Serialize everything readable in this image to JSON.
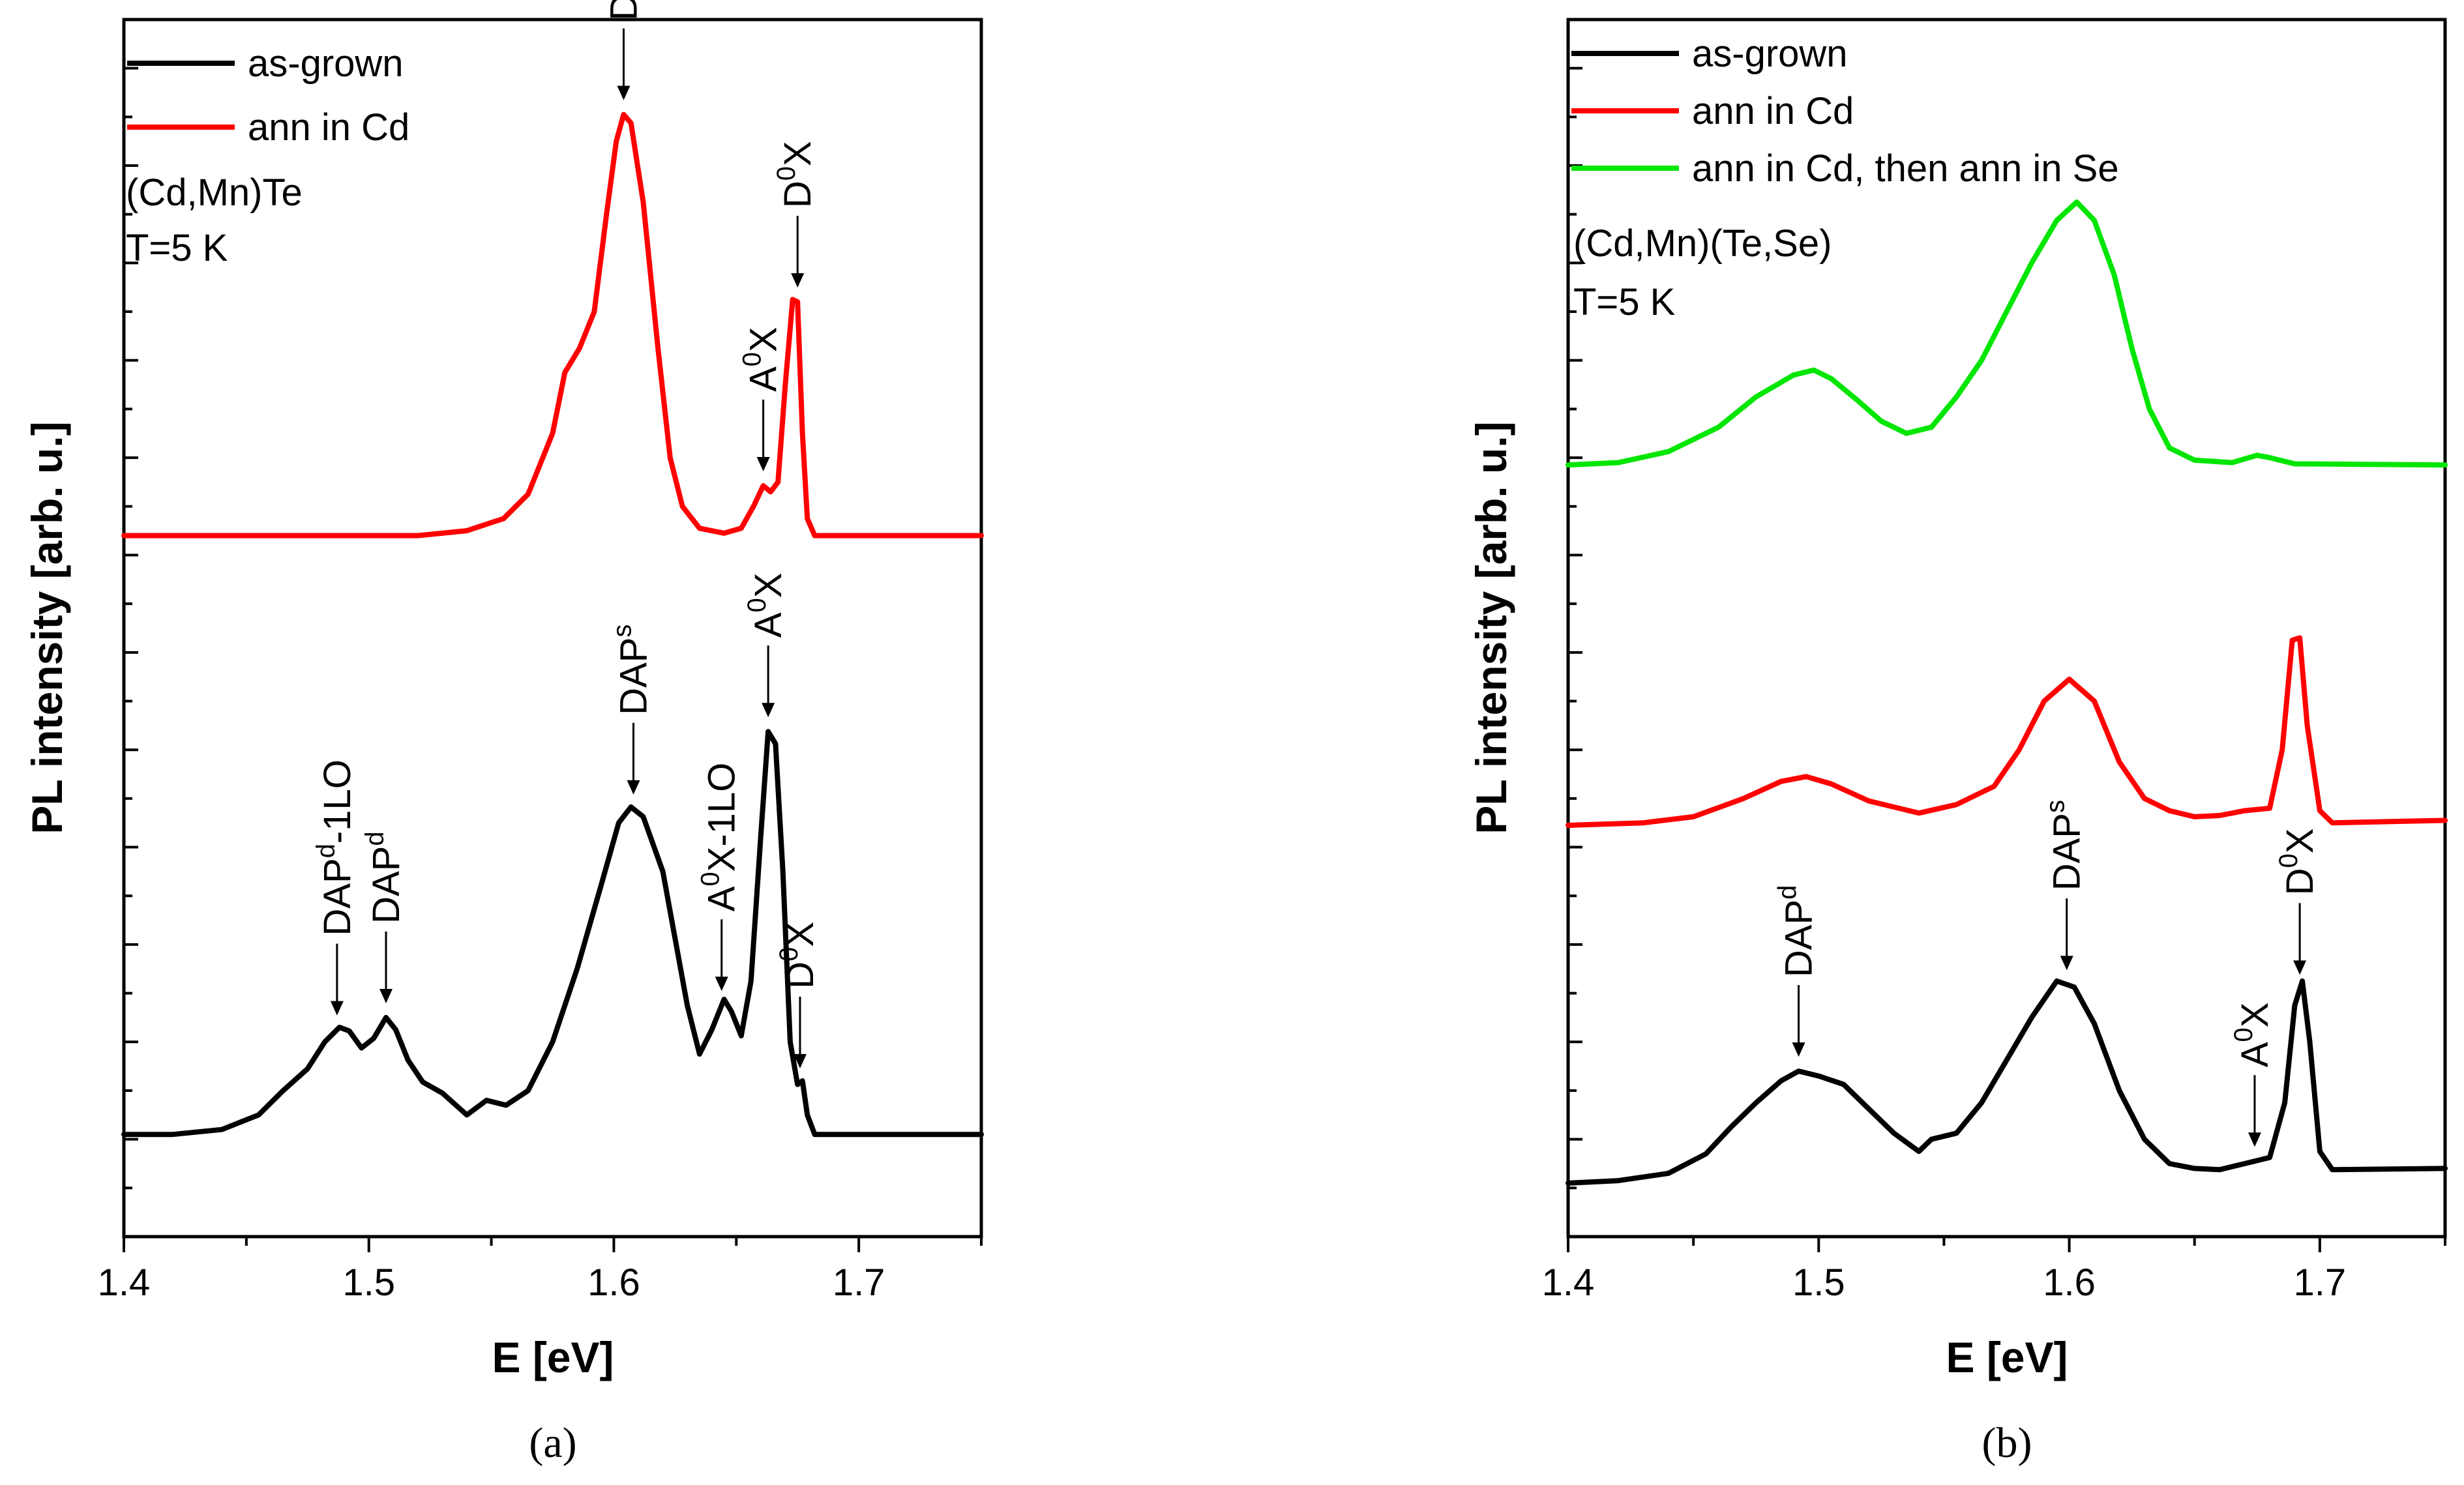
{
  "chart_data": [
    {
      "type": "line",
      "panel_label": "(a)",
      "xlabel": "E [eV]",
      "ylabel": "PL intensity [arb. u.]",
      "xlim": [
        1.4,
        1.75
      ],
      "ylim": [
        0,
        1
      ],
      "x_ticks": [
        "1.4",
        "1.5",
        "1.6",
        "1.7"
      ],
      "y_tick_labels": "none",
      "legend_position": "top-left",
      "annotations": [
        "(Cd,Mn)Te",
        "T=5 K"
      ],
      "series": [
        {
          "name": "as-grown",
          "color": "#000000",
          "points": [
            [
              1.4,
              0.084
            ],
            [
              1.42,
              0.084
            ],
            [
              1.44,
              0.088
            ],
            [
              1.455,
              0.1
            ],
            [
              1.465,
              0.12
            ],
            [
              1.475,
              0.138
            ],
            [
              1.482,
              0.16
            ],
            [
              1.488,
              0.172
            ],
            [
              1.492,
              0.169
            ],
            [
              1.497,
              0.155
            ],
            [
              1.502,
              0.163
            ],
            [
              1.507,
              0.18
            ],
            [
              1.511,
              0.17
            ],
            [
              1.516,
              0.145
            ],
            [
              1.522,
              0.127
            ],
            [
              1.53,
              0.118
            ],
            [
              1.54,
              0.1
            ],
            [
              1.548,
              0.112
            ],
            [
              1.556,
              0.108
            ],
            [
              1.565,
              0.12
            ],
            [
              1.575,
              0.16
            ],
            [
              1.585,
              0.22
            ],
            [
              1.595,
              0.29
            ],
            [
              1.602,
              0.34
            ],
            [
              1.607,
              0.353
            ],
            [
              1.612,
              0.345
            ],
            [
              1.62,
              0.3
            ],
            [
              1.63,
              0.19
            ],
            [
              1.635,
              0.15
            ],
            [
              1.64,
              0.17
            ],
            [
              1.645,
              0.195
            ],
            [
              1.648,
              0.185
            ],
            [
              1.652,
              0.165
            ],
            [
              1.656,
              0.21
            ],
            [
              1.66,
              0.33
            ],
            [
              1.663,
              0.415
            ],
            [
              1.666,
              0.405
            ],
            [
              1.669,
              0.3
            ],
            [
              1.672,
              0.16
            ],
            [
              1.675,
              0.125
            ],
            [
              1.677,
              0.128
            ],
            [
              1.679,
              0.1
            ],
            [
              1.682,
              0.084
            ],
            [
              1.7,
              0.084
            ],
            [
              1.75,
              0.084
            ]
          ]
        },
        {
          "name": "ann in Cd",
          "color": "#ff0000",
          "points": [
            [
              1.4,
              0.576
            ],
            [
              1.52,
              0.576
            ],
            [
              1.54,
              0.58
            ],
            [
              1.555,
              0.59
            ],
            [
              1.565,
              0.61
            ],
            [
              1.575,
              0.66
            ],
            [
              1.58,
              0.71
            ],
            [
              1.586,
              0.73
            ],
            [
              1.592,
              0.76
            ],
            [
              1.597,
              0.84
            ],
            [
              1.601,
              0.9
            ],
            [
              1.604,
              0.922
            ],
            [
              1.607,
              0.915
            ],
            [
              1.612,
              0.85
            ],
            [
              1.618,
              0.73
            ],
            [
              1.623,
              0.64
            ],
            [
              1.628,
              0.6
            ],
            [
              1.635,
              0.582
            ],
            [
              1.645,
              0.578
            ],
            [
              1.652,
              0.582
            ],
            [
              1.657,
              0.6
            ],
            [
              1.661,
              0.617
            ],
            [
              1.664,
              0.612
            ],
            [
              1.667,
              0.62
            ],
            [
              1.67,
              0.7
            ],
            [
              1.673,
              0.77
            ],
            [
              1.675,
              0.768
            ],
            [
              1.677,
              0.66
            ],
            [
              1.679,
              0.59
            ],
            [
              1.682,
              0.576
            ],
            [
              1.75,
              0.576
            ]
          ]
        }
      ],
      "peak_labels": [
        {
          "text": "DAP",
          "sup": "s",
          "x": 1.604,
          "series": "ann in Cd"
        },
        {
          "text": "A",
          "sup": "0",
          "tail": "X",
          "x": 1.661,
          "series": "ann in Cd"
        },
        {
          "text": "D",
          "sup": "0",
          "tail": "X",
          "x": 1.675,
          "series": "ann in Cd"
        },
        {
          "text": "DAP",
          "sup": "d",
          "tail": "-1LO",
          "x": 1.487,
          "series": "as-grown"
        },
        {
          "text": "DAP",
          "sup": "d",
          "x": 1.507,
          "series": "as-grown"
        },
        {
          "text": "DAP",
          "sup": "s",
          "x": 1.608,
          "series": "as-grown"
        },
        {
          "text": "A",
          "sup": "0",
          "tail": "X-1LO",
          "x": 1.644,
          "series": "as-grown"
        },
        {
          "text": "A",
          "sup": "0",
          "tail": "X",
          "x": 1.663,
          "series": "as-grown"
        },
        {
          "text": "D",
          "sup": "0",
          "tail": "X",
          "x": 1.676,
          "series": "as-grown"
        }
      ]
    },
    {
      "type": "line",
      "panel_label": "(b)",
      "xlabel": "E [eV]",
      "ylabel": "PL intensity [arb. u.]",
      "xlim": [
        1.4,
        1.75
      ],
      "ylim": [
        0,
        1
      ],
      "x_ticks": [
        "1.4",
        "1.5",
        "1.6",
        "1.7"
      ],
      "y_tick_labels": "none",
      "legend_position": "top-left",
      "annotations": [
        "(Cd,Mn)(Te,Se)",
        "T=5 K"
      ],
      "series": [
        {
          "name": "as-grown",
          "color": "#000000",
          "points": [
            [
              1.4,
              0.044
            ],
            [
              1.42,
              0.046
            ],
            [
              1.44,
              0.052
            ],
            [
              1.455,
              0.068
            ],
            [
              1.465,
              0.09
            ],
            [
              1.475,
              0.11
            ],
            [
              1.485,
              0.128
            ],
            [
              1.492,
              0.136
            ],
            [
              1.5,
              0.132
            ],
            [
              1.51,
              0.125
            ],
            [
              1.52,
              0.105
            ],
            [
              1.53,
              0.085
            ],
            [
              1.54,
              0.07
            ],
            [
              1.545,
              0.08
            ],
            [
              1.555,
              0.085
            ],
            [
              1.565,
              0.11
            ],
            [
              1.575,
              0.145
            ],
            [
              1.585,
              0.18
            ],
            [
              1.595,
              0.21
            ],
            [
              1.602,
              0.205
            ],
            [
              1.61,
              0.175
            ],
            [
              1.62,
              0.12
            ],
            [
              1.63,
              0.08
            ],
            [
              1.64,
              0.06
            ],
            [
              1.65,
              0.056
            ],
            [
              1.66,
              0.055
            ],
            [
              1.67,
              0.06
            ],
            [
              1.68,
              0.065
            ],
            [
              1.686,
              0.11
            ],
            [
              1.69,
              0.19
            ],
            [
              1.693,
              0.21
            ],
            [
              1.696,
              0.16
            ],
            [
              1.7,
              0.07
            ],
            [
              1.705,
              0.055
            ],
            [
              1.75,
              0.056
            ]
          ]
        },
        {
          "name": "ann in Cd",
          "color": "#ff0000",
          "points": [
            [
              1.4,
              0.338
            ],
            [
              1.43,
              0.34
            ],
            [
              1.45,
              0.345
            ],
            [
              1.47,
              0.36
            ],
            [
              1.485,
              0.374
            ],
            [
              1.495,
              0.378
            ],
            [
              1.505,
              0.372
            ],
            [
              1.52,
              0.358
            ],
            [
              1.54,
              0.348
            ],
            [
              1.555,
              0.355
            ],
            [
              1.57,
              0.37
            ],
            [
              1.58,
              0.4
            ],
            [
              1.59,
              0.44
            ],
            [
              1.6,
              0.458
            ],
            [
              1.61,
              0.44
            ],
            [
              1.62,
              0.39
            ],
            [
              1.63,
              0.36
            ],
            [
              1.64,
              0.35
            ],
            [
              1.65,
              0.345
            ],
            [
              1.66,
              0.346
            ],
            [
              1.67,
              0.35
            ],
            [
              1.68,
              0.352
            ],
            [
              1.685,
              0.4
            ],
            [
              1.689,
              0.49
            ],
            [
              1.692,
              0.492
            ],
            [
              1.695,
              0.42
            ],
            [
              1.7,
              0.35
            ],
            [
              1.705,
              0.34
            ],
            [
              1.75,
              0.342
            ]
          ]
        },
        {
          "name": "ann in Cd, then ann in Se",
          "color": "#00e600",
          "points": [
            [
              1.4,
              0.634
            ],
            [
              1.42,
              0.636
            ],
            [
              1.44,
              0.645
            ],
            [
              1.46,
              0.665
            ],
            [
              1.475,
              0.69
            ],
            [
              1.49,
              0.708
            ],
            [
              1.498,
              0.712
            ],
            [
              1.505,
              0.705
            ],
            [
              1.515,
              0.688
            ],
            [
              1.525,
              0.67
            ],
            [
              1.535,
              0.66
            ],
            [
              1.545,
              0.665
            ],
            [
              1.555,
              0.69
            ],
            [
              1.565,
              0.72
            ],
            [
              1.575,
              0.76
            ],
            [
              1.585,
              0.8
            ],
            [
              1.595,
              0.835
            ],
            [
              1.603,
              0.85
            ],
            [
              1.61,
              0.835
            ],
            [
              1.618,
              0.79
            ],
            [
              1.625,
              0.73
            ],
            [
              1.632,
              0.68
            ],
            [
              1.64,
              0.648
            ],
            [
              1.65,
              0.638
            ],
            [
              1.665,
              0.636
            ],
            [
              1.675,
              0.642
            ],
            [
              1.68,
              0.64
            ],
            [
              1.69,
              0.635
            ],
            [
              1.75,
              0.634
            ]
          ]
        }
      ],
      "peak_labels": [
        {
          "text": "DAP",
          "sup": "d",
          "x": 1.492,
          "series": "as-grown"
        },
        {
          "text": "DAP",
          "sup": "s",
          "x": 1.599,
          "series": "as-grown"
        },
        {
          "text": "A",
          "sup": "0",
          "tail": "X",
          "x": 1.674,
          "series": "as-grown"
        },
        {
          "text": "D",
          "sup": "0",
          "tail": "X",
          "x": 1.692,
          "series": "as-grown"
        }
      ]
    }
  ]
}
